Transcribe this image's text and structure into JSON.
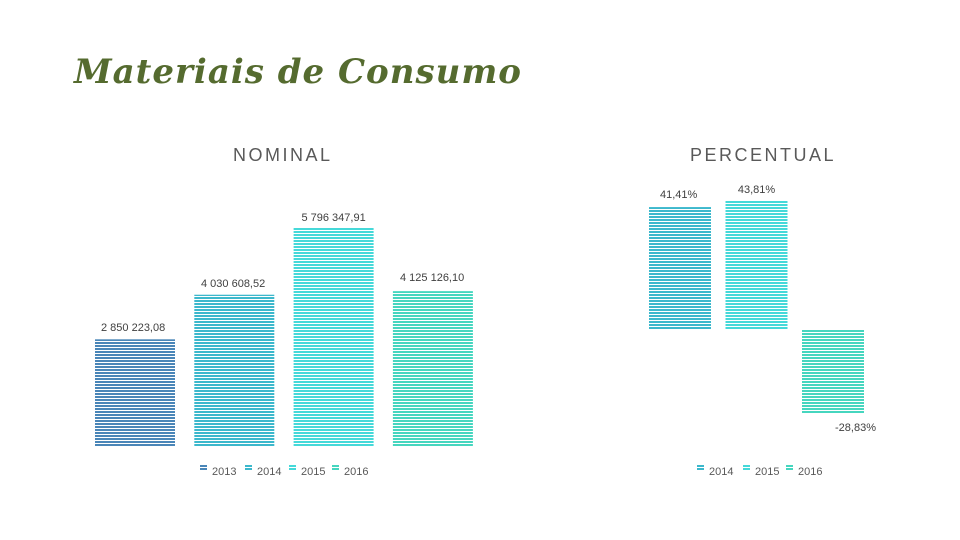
{
  "slide": {
    "title": "Materiais de Consumo"
  },
  "colors": {
    "2013": "#4a86b8",
    "2014": "#3cb8cc",
    "2015": "#45d9d9",
    "2016": "#46d6bf",
    "title": "#556b2f"
  },
  "chart_data": [
    {
      "type": "bar",
      "title": "NOMINAL",
      "categories": [
        "2013",
        "2014",
        "2015",
        "2016"
      ],
      "values": [
        2850223.08,
        4030608.52,
        5796347.91,
        4125126.1
      ],
      "value_labels": [
        "2 850 223,08",
        "4 030 608,52",
        "5 796 347,91",
        "4 125 126,10"
      ],
      "legend": [
        "2013",
        "2014",
        "2015",
        "2016"
      ],
      "legend_position": "bottom",
      "grid": false,
      "ylim": [
        0,
        6200000
      ]
    },
    {
      "type": "bar",
      "title": "PERCENTUAL",
      "categories": [
        "2014",
        "2015",
        "2016"
      ],
      "values": [
        41.41,
        43.81,
        -28.83
      ],
      "value_labels": [
        "41,41%",
        "43,81%",
        "-28,83%"
      ],
      "legend": [
        "2014",
        "2015",
        "2016"
      ],
      "legend_position": "bottom",
      "grid": false,
      "ylim": [
        -30,
        50
      ]
    }
  ]
}
